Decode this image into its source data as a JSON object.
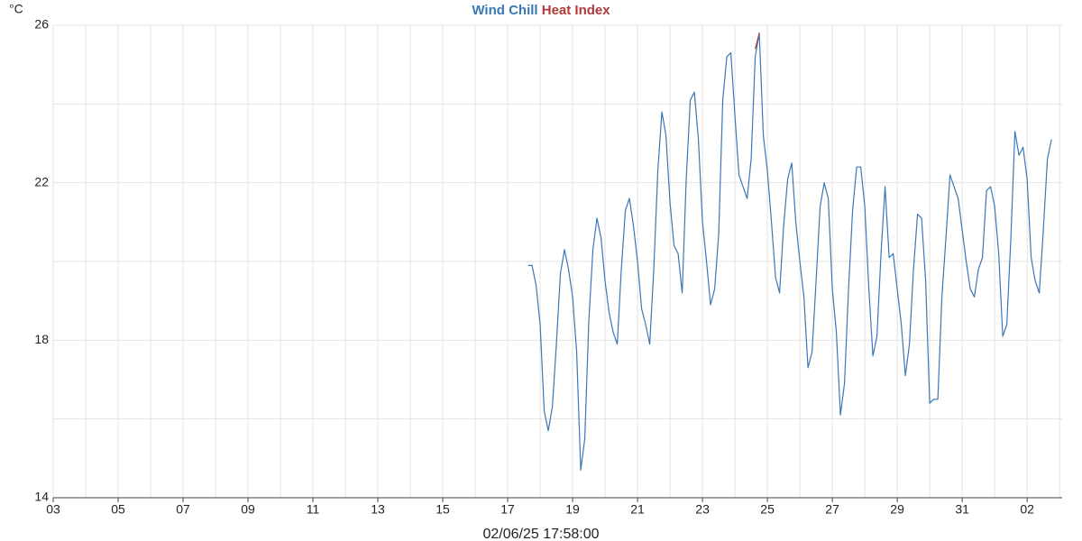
{
  "chart_data": {
    "type": "line",
    "ylabel": "°C",
    "xlabel": "02/06/25 17:58:00",
    "xlim": [
      0,
      31.08
    ],
    "ylim": [
      14,
      26
    ],
    "xticks": [
      {
        "value": 0,
        "label": "03"
      },
      {
        "value": 2,
        "label": "05"
      },
      {
        "value": 4,
        "label": "07"
      },
      {
        "value": 6,
        "label": "09"
      },
      {
        "value": 8,
        "label": "11"
      },
      {
        "value": 10,
        "label": "13"
      },
      {
        "value": 12,
        "label": "15"
      },
      {
        "value": 14,
        "label": "17"
      },
      {
        "value": 16,
        "label": "19"
      },
      {
        "value": 18,
        "label": "21"
      },
      {
        "value": 20,
        "label": "23"
      },
      {
        "value": 22,
        "label": "25"
      },
      {
        "value": 24,
        "label": "27"
      },
      {
        "value": 26,
        "label": "29"
      },
      {
        "value": 28,
        "label": "31"
      },
      {
        "value": 30,
        "label": "02"
      }
    ],
    "xminor": [
      1,
      3,
      5,
      7,
      9,
      11,
      13,
      15,
      17,
      19,
      21,
      23,
      25,
      27,
      29,
      31
    ],
    "yticks": [
      14,
      18,
      22,
      26
    ],
    "yminor": [
      16,
      20,
      24
    ],
    "grid": true,
    "series": [
      {
        "name": "Wind Chill",
        "color": "#3a78b5",
        "x": [
          14.625,
          14.75,
          14.875,
          15,
          15.125,
          15.25,
          15.375,
          15.5,
          15.625,
          15.75,
          15.875,
          16,
          16.125,
          16.25,
          16.375,
          16.5,
          16.625,
          16.75,
          16.875,
          17,
          17.125,
          17.25,
          17.375,
          17.5,
          17.625,
          17.75,
          17.875,
          18,
          18.125,
          18.25,
          18.375,
          18.5,
          18.625,
          18.75,
          18.875,
          19,
          19.125,
          19.25,
          19.375,
          19.5,
          19.625,
          19.75,
          19.875,
          20,
          20.125,
          20.25,
          20.375,
          20.5,
          20.625,
          20.75,
          20.875,
          21,
          21.125,
          21.25,
          21.375,
          21.5,
          21.625,
          21.75,
          21.875,
          22,
          22.125,
          22.25,
          22.375,
          22.5,
          22.625,
          22.75,
          22.875,
          23,
          23.125,
          23.25,
          23.375,
          23.5,
          23.625,
          23.75,
          23.875,
          24,
          24.125,
          24.25,
          24.375,
          24.5,
          24.625,
          24.75,
          24.875,
          25,
          25.125,
          25.25,
          25.375,
          25.5,
          25.625,
          25.75,
          25.875,
          26,
          26.125,
          26.25,
          26.375,
          26.5,
          26.625,
          26.75,
          26.875,
          27,
          27.125,
          27.25,
          27.375,
          27.5,
          27.625,
          27.75,
          27.875,
          28,
          28.125,
          28.25,
          28.375,
          28.5,
          28.625,
          28.75,
          28.875,
          29,
          29.125,
          29.25,
          29.375,
          29.5,
          29.625,
          29.75,
          29.875,
          30,
          30.125,
          30.25,
          30.375,
          30.5,
          30.625,
          30.75
        ],
        "values": [
          19.9,
          19.9,
          19.4,
          18.4,
          16.2,
          15.7,
          16.3,
          17.9,
          19.7,
          20.3,
          19.8,
          19.1,
          17.7,
          14.7,
          15.5,
          18.5,
          20.3,
          21.1,
          20.6,
          19.5,
          18.7,
          18.2,
          17.9,
          19.8,
          21.3,
          21.6,
          20.9,
          20.0,
          18.8,
          18.4,
          17.9,
          19.8,
          22.3,
          23.8,
          23.2,
          21.5,
          20.4,
          20.2,
          19.2,
          22.1,
          24.1,
          24.3,
          23.1,
          21.0,
          20.0,
          18.9,
          19.3,
          20.7,
          24.1,
          25.2,
          25.3,
          23.7,
          22.2,
          21.9,
          21.6,
          22.6,
          25.2,
          25.8,
          23.2,
          22.3,
          21.0,
          19.6,
          19.2,
          20.9,
          22.1,
          22.5,
          21.0,
          20.0,
          19.1,
          17.3,
          17.7,
          19.5,
          21.4,
          22.0,
          21.6,
          19.3,
          18.2,
          16.1,
          16.9,
          19.3,
          21.3,
          22.4,
          22.4,
          21.4,
          19.3,
          17.6,
          18.1,
          20.2,
          21.9,
          20.1,
          20.2,
          19.3,
          18.4,
          17.1,
          17.9,
          19.8,
          21.2,
          21.1,
          19.5,
          16.4,
          16.5,
          16.5,
          19.1,
          20.6,
          22.2,
          21.9,
          21.6,
          20.8,
          20.0,
          19.3,
          19.1,
          19.8,
          20.1,
          21.8,
          21.9,
          21.4,
          20.2,
          18.1,
          18.4,
          20.6,
          23.3,
          22.7,
          22.9,
          22.1,
          20.1,
          19.5,
          19.2,
          20.8,
          22.6,
          23.1
        ]
      },
      {
        "name": "Heat Index",
        "color": "#b03a3a",
        "x": [
          21.625,
          21.75
        ],
        "values": [
          25.4,
          25.8
        ]
      }
    ]
  }
}
